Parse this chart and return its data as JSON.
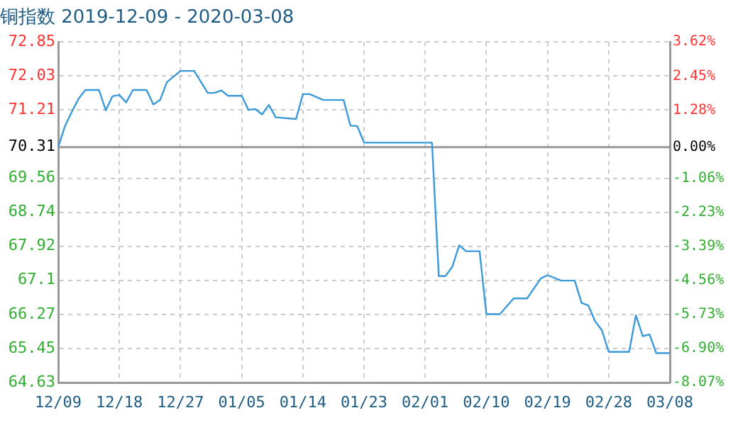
{
  "chart_data": {
    "type": "line",
    "title": "铜指数 2019-12-09 - 2020-03-08",
    "x": [
      "2019-12-09",
      "2019-12-10",
      "2019-12-11",
      "2019-12-12",
      "2019-12-13",
      "2019-12-15",
      "2019-12-16",
      "2019-12-17",
      "2019-12-18",
      "2019-12-19",
      "2019-12-20",
      "2019-12-22",
      "2019-12-23",
      "2019-12-24",
      "2019-12-25",
      "2019-12-27",
      "2019-12-29",
      "2019-12-31",
      "2020-01-01",
      "2020-01-02",
      "2020-01-03",
      "2020-01-05",
      "2020-01-06",
      "2020-01-07",
      "2020-01-08",
      "2020-01-09",
      "2020-01-10",
      "2020-01-13",
      "2020-01-14",
      "2020-01-15",
      "2020-01-17",
      "2020-01-20",
      "2020-01-21",
      "2020-01-22",
      "2020-01-23",
      "2020-02-02",
      "2020-02-03",
      "2020-02-04",
      "2020-02-05",
      "2020-02-06",
      "2020-02-07",
      "2020-02-09",
      "2020-02-10",
      "2020-02-12",
      "2020-02-14",
      "2020-02-16",
      "2020-02-18",
      "2020-02-19",
      "2020-02-21",
      "2020-02-23",
      "2020-02-24",
      "2020-02-25",
      "2020-02-26",
      "2020-02-27",
      "2020-02-28",
      "2020-03-02",
      "2020-03-03",
      "2020-03-04",
      "2020-03-05",
      "2020-03-06",
      "2020-03-08"
    ],
    "series": [
      {
        "color": "#3a9ad9",
        "values": [
          70.31,
          70.82,
          71.16,
          71.48,
          71.69,
          71.69,
          71.2,
          71.54,
          71.57,
          71.39,
          71.69,
          71.69,
          71.34,
          71.45,
          71.88,
          72.15,
          72.15,
          71.62,
          71.62,
          71.68,
          71.55,
          71.55,
          71.21,
          71.23,
          71.1,
          71.33,
          71.03,
          70.99,
          71.59,
          71.59,
          71.45,
          71.45,
          70.83,
          70.82,
          70.42,
          70.42,
          67.2,
          67.2,
          67.43,
          67.94,
          67.8,
          67.8,
          66.28,
          66.28,
          66.66,
          66.66,
          67.14,
          67.22,
          67.09,
          67.09,
          66.55,
          66.49,
          66.11,
          65.89,
          65.37,
          65.37,
          66.25,
          65.75,
          65.79,
          65.34,
          65.34
        ]
      }
    ],
    "xlim": [
      "2019-12-09",
      "2020-03-08"
    ],
    "xticks": [
      {
        "value": "2019-12-09",
        "label": "12/09"
      },
      {
        "value": "2019-12-18",
        "label": "12/18"
      },
      {
        "value": "2019-12-27",
        "label": "12/27"
      },
      {
        "value": "2020-01-05",
        "label": "01/05"
      },
      {
        "value": "2020-01-14",
        "label": "01/14"
      },
      {
        "value": "2020-01-23",
        "label": "01/23"
      },
      {
        "value": "2020-02-01",
        "label": "02/01"
      },
      {
        "value": "2020-02-10",
        "label": "02/10"
      },
      {
        "value": "2020-02-19",
        "label": "02/19"
      },
      {
        "value": "2020-02-28",
        "label": "02/28"
      },
      {
        "value": "2020-03-08",
        "label": "03/08"
      }
    ],
    "ylim": [
      64.63,
      72.85
    ],
    "yticks": [
      64.63,
      65.45,
      66.27,
      67.1,
      67.92,
      68.74,
      69.56,
      70.31,
      71.21,
      72.03,
      72.85
    ],
    "y2lim": [
      -8.07,
      3.62
    ],
    "y2ticks": [
      {
        "value": -8.07,
        "label": "-8.07%"
      },
      {
        "value": -6.9,
        "label": "-6.90%"
      },
      {
        "value": -5.73,
        "label": "-5.73%"
      },
      {
        "value": -4.56,
        "label": "-4.56%"
      },
      {
        "value": -3.39,
        "label": "-3.39%"
      },
      {
        "value": -2.23,
        "label": "-2.23%"
      },
      {
        "value": -1.06,
        "label": "-1.06%"
      },
      {
        "value": 0,
        "label": "0.00%"
      },
      {
        "value": 1.28,
        "label": "1.28%"
      },
      {
        "value": 2.45,
        "label": "2.45%"
      },
      {
        "value": 3.62,
        "label": "3.62%"
      }
    ],
    "ref_lines": [
      {
        "axis": "y",
        "value": 70.31,
        "color": "#999999"
      }
    ],
    "grid": true,
    "legend": false,
    "marker": "none",
    "line_style": "solid"
  }
}
